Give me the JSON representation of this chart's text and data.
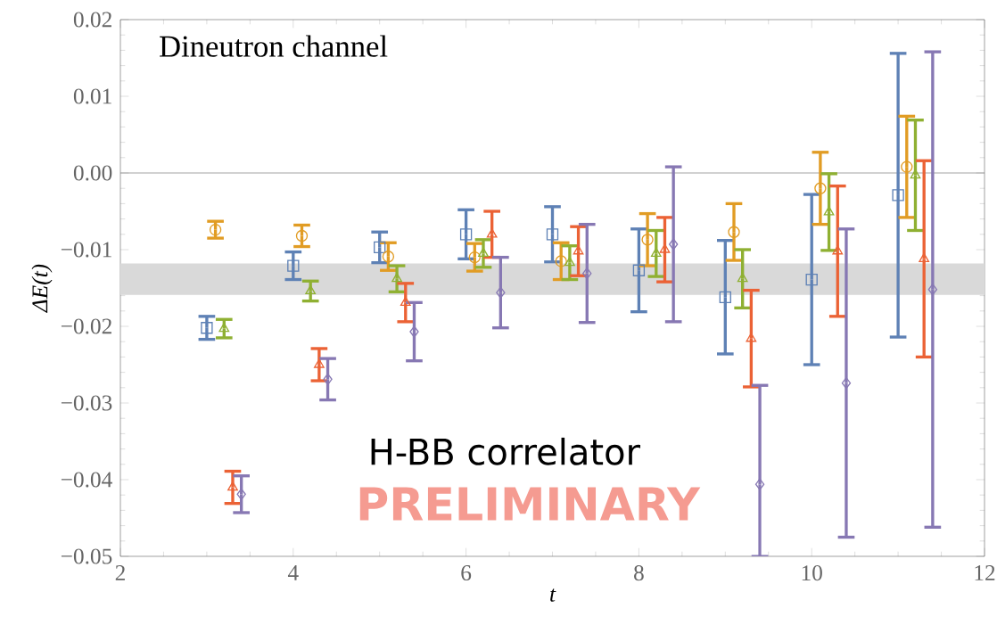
{
  "chart_data": {
    "type": "scatter",
    "xlabel": "t",
    "ylabel": "ΔE(t)",
    "xlim": [
      2,
      12
    ],
    "ylim": [
      -0.05,
      0.02
    ],
    "xticks": [
      2,
      4,
      6,
      8,
      10,
      12
    ],
    "yticks": [
      {
        "value": -0.05,
        "label": "−0.05"
      },
      {
        "value": -0.04,
        "label": "−0.04"
      },
      {
        "value": -0.03,
        "label": "−0.03"
      },
      {
        "value": -0.02,
        "label": "−0.02"
      },
      {
        "value": -0.01,
        "label": "−0.01"
      },
      {
        "value": 0,
        "label": "0.00"
      },
      {
        "value": 0.01,
        "label": "0.01"
      },
      {
        "value": 0.02,
        "label": "0.02"
      }
    ],
    "grid": false,
    "series": [
      {
        "color": "#5e81b5",
        "marker": "square",
        "x": [
          3,
          4,
          5,
          6,
          7,
          8,
          9,
          10,
          11
        ],
        "values": [
          -0.0202,
          -0.0121,
          -0.0097,
          -0.008,
          -0.008,
          -0.0127,
          -0.0162,
          -0.0139,
          -0.0029
        ],
        "errors": [
          0.0015,
          0.0018,
          0.002,
          0.0032,
          0.0036,
          0.0054,
          0.0074,
          0.0111,
          0.0185
        ]
      },
      {
        "color": "#e19c24",
        "marker": "circle",
        "x": [
          3.1,
          4.1,
          5.1,
          6.1,
          7.1,
          8.1,
          9.1,
          10.1,
          11.1
        ],
        "values": [
          -0.0074,
          -0.0082,
          -0.0109,
          -0.011,
          -0.0115,
          -0.0087,
          -0.0077,
          -0.002,
          0.0008
        ],
        "errors": [
          0.0011,
          0.0014,
          0.0018,
          0.0018,
          0.0024,
          0.0034,
          0.0037,
          0.0047,
          0.0066
        ]
      },
      {
        "color": "#8fb032",
        "marker": "triangle",
        "x": [
          3.2,
          4.2,
          5.2,
          6.2,
          7.2,
          8.2,
          9.2,
          10.2,
          11.2
        ],
        "values": [
          -0.0203,
          -0.0154,
          -0.0138,
          -0.0105,
          -0.0117,
          -0.0105,
          -0.0138,
          -0.0051,
          -0.0003
        ],
        "errors": [
          0.0012,
          0.0013,
          0.0017,
          0.0018,
          0.0022,
          0.003,
          0.0038,
          0.005,
          0.0072
        ]
      },
      {
        "color": "#eb6235",
        "marker": "triangle",
        "x": [
          3.3,
          4.3,
          5.3,
          6.3,
          7.3,
          8.3,
          9.3,
          10.3,
          11.3
        ],
        "values": [
          -0.041,
          -0.025,
          -0.0169,
          -0.008,
          -0.0102,
          -0.01,
          -0.0216,
          -0.0102,
          -0.0112
        ],
        "errors": [
          0.0021,
          0.0021,
          0.0025,
          0.003,
          0.0032,
          0.0042,
          0.0063,
          0.0085,
          0.0128
        ]
      },
      {
        "color": "#8778b3",
        "marker": "diamond",
        "x": [
          3.4,
          4.4,
          5.4,
          6.4,
          7.4,
          8.4,
          9.4,
          10.4,
          11.4
        ],
        "values": [
          -0.0419,
          -0.0269,
          -0.0207,
          -0.0156,
          -0.0131,
          -0.0093,
          -0.0406,
          -0.0274,
          -0.0152
        ],
        "errors": [
          0.0024,
          0.0027,
          0.0038,
          0.0046,
          0.0064,
          0.0101,
          [
            -0.05,
            -0.0277
          ],
          0.0201,
          0.031
        ]
      }
    ],
    "ref_lines": [
      {
        "axis": "y",
        "value": 0,
        "color": "#8c8c8c"
      }
    ],
    "bands": [
      {
        "axis": "y",
        "from": -0.0159,
        "to": -0.0118,
        "color": "#d9d9d9"
      }
    ],
    "annotations": [
      "Dineutron channel",
      "H-BB correlator",
      "PRELIMINARY"
    ]
  }
}
